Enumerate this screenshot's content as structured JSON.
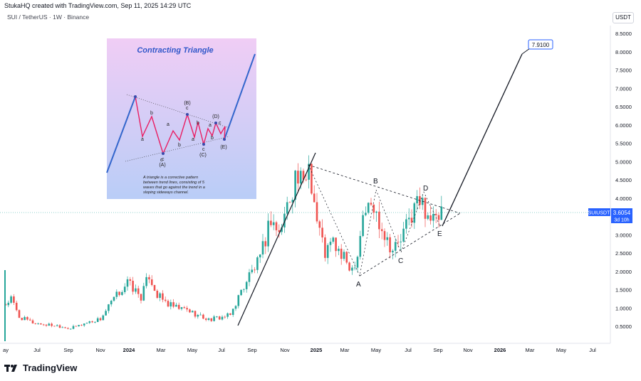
{
  "header": {
    "attribution": "StukaHQ created with TradingView.com, Sep 11, 2025 14:29 UTC",
    "legend": "SUI / TetherUS · 1W · Binance",
    "currency": "USDT"
  },
  "footer": {
    "brand": "TradingView"
  },
  "price_label": {
    "symbol": "SUIUSDT",
    "price": "3.6054",
    "countdown": "3d 10h"
  },
  "target_label": "7.9100",
  "wave_labels": [
    "A",
    "B",
    "C",
    "D",
    "E"
  ],
  "inset": {
    "title": "Contracting Triangle",
    "description": [
      "A triangle is a corrective pattern",
      "between trend lines, consisting of 5",
      "waves that go against the trend in a",
      "sloping sideways channel."
    ],
    "wave_labels": [
      "(A)",
      "(B)",
      "(C)",
      "(D)",
      "(E)"
    ],
    "sub_labels": [
      "a",
      "b",
      "c",
      "a",
      "b",
      "c",
      "a",
      "b",
      "c",
      "a",
      "b",
      "c",
      "c"
    ]
  },
  "colors": {
    "up": "#26a69a",
    "down": "#ef5350",
    "price_tag": "#2962ff",
    "projection": "#131722",
    "inset_line": "#e91e63",
    "inset_trend": "#3366cc"
  },
  "chart_data": {
    "type": "candlestick",
    "symbol": "SUIUSDT",
    "interval": "1W",
    "y_ticks": [
      8.5,
      8.0,
      7.5,
      7.0,
      6.5,
      6.0,
      5.5,
      5.0,
      4.5,
      4.0,
      3.5,
      3.0,
      2.5,
      2.0,
      1.5,
      1.0,
      0.5
    ],
    "x_ticks": [
      "ay",
      "Jul",
      "Sep",
      "Nov",
      "2024",
      "Mar",
      "May",
      "Jul",
      "Sep",
      "Nov",
      "2025",
      "Mar",
      "May",
      "Jul",
      "Sep",
      "Nov",
      "2026",
      "Mar",
      "May",
      "Jul"
    ],
    "last_price": 3.6054,
    "target": 7.91,
    "waypoints": [
      {
        "t": 0,
        "v": 1.1
      },
      {
        "t": 2,
        "v": 1.25
      },
      {
        "t": 5,
        "v": 0.75
      },
      {
        "t": 10,
        "v": 0.6
      },
      {
        "t": 14,
        "v": 0.55
      },
      {
        "t": 19,
        "v": 0.52
      },
      {
        "t": 24,
        "v": 0.44
      },
      {
        "t": 30,
        "v": 0.6
      },
      {
        "t": 35,
        "v": 0.7
      },
      {
        "t": 40,
        "v": 1.25
      },
      {
        "t": 45,
        "v": 1.7
      },
      {
        "t": 50,
        "v": 1.3
      },
      {
        "t": 53,
        "v": 1.9
      },
      {
        "t": 56,
        "v": 1.35
      },
      {
        "t": 60,
        "v": 1.1
      },
      {
        "t": 63,
        "v": 1.0
      },
      {
        "t": 67,
        "v": 0.95
      },
      {
        "t": 71,
        "v": 0.8
      },
      {
        "t": 75,
        "v": 0.68
      },
      {
        "t": 80,
        "v": 0.75
      },
      {
        "t": 83,
        "v": 0.8
      },
      {
        "t": 86,
        "v": 1.3
      },
      {
        "t": 90,
        "v": 1.9
      },
      {
        "t": 94,
        "v": 2.3
      },
      {
        "t": 98,
        "v": 3.5
      },
      {
        "t": 101,
        "v": 3.0
      },
      {
        "t": 104,
        "v": 3.8
      },
      {
        "t": 107,
        "v": 4.6
      },
      {
        "t": 110,
        "v": 4.3
      },
      {
        "t": 112,
        "v": 5.0
      },
      {
        "t": 115,
        "v": 3.4
      },
      {
        "t": 118,
        "v": 2.5
      },
      {
        "t": 121,
        "v": 2.8
      },
      {
        "t": 124,
        "v": 2.4
      },
      {
        "t": 128,
        "v": 2.1
      },
      {
        "t": 130,
        "v": 2.5
      },
      {
        "t": 132,
        "v": 3.6
      },
      {
        "t": 135,
        "v": 3.8
      },
      {
        "t": 138,
        "v": 3.4
      },
      {
        "t": 141,
        "v": 2.9
      },
      {
        "t": 143,
        "v": 2.6
      },
      {
        "t": 146,
        "v": 2.85
      },
      {
        "t": 149,
        "v": 3.4
      },
      {
        "t": 152,
        "v": 3.9
      },
      {
        "t": 155,
        "v": 3.75
      },
      {
        "t": 157,
        "v": 3.5
      },
      {
        "t": 159,
        "v": 3.3
      },
      {
        "t": 161,
        "v": 3.6
      }
    ]
  }
}
